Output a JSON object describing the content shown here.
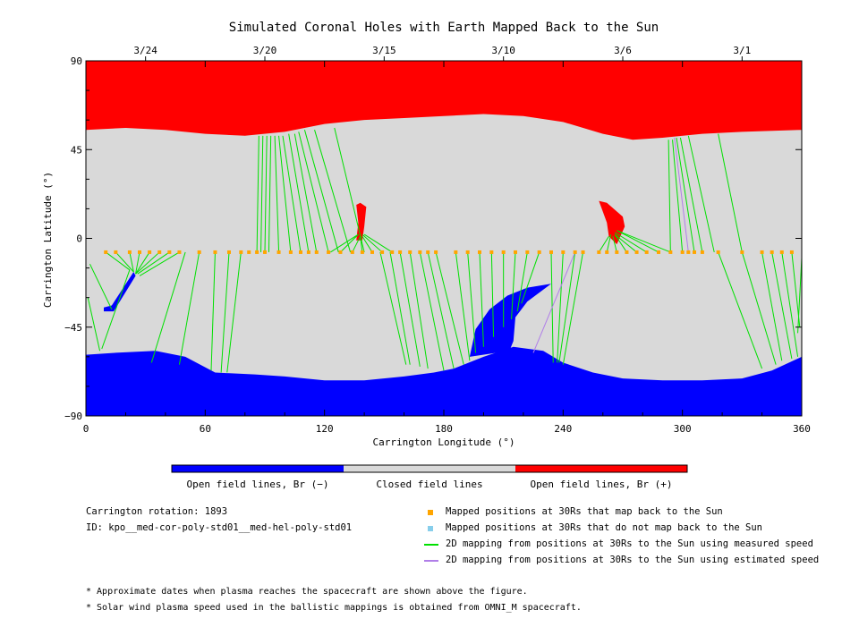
{
  "chart_data": {
    "type": "heatmap",
    "title": "Simulated Coronal Holes with Earth Mapped Back to the Sun",
    "xlabel": "Carrington Longitude (°)",
    "ylabel": "Carrington Latitude (°)",
    "xlim": [
      0,
      360
    ],
    "ylim": [
      -90,
      90
    ],
    "x_ticks": [
      0,
      60,
      120,
      180,
      240,
      300,
      360
    ],
    "y_ticks": [
      -90,
      -45,
      0,
      45,
      90
    ],
    "x_tick_labels": [
      "0",
      "60",
      "120",
      "180",
      "240",
      "300",
      "360"
    ],
    "y_tick_labels": [
      "−90",
      "−45",
      "0",
      "45",
      "90"
    ],
    "top_axis": {
      "labels": [
        {
          "text": "3/24",
          "lon": 30
        },
        {
          "text": "3/20",
          "lon": 90
        },
        {
          "text": "3/15",
          "lon": 150
        },
        {
          "text": "3/10",
          "lon": 210
        },
        {
          "text": "3/6",
          "lon": 270
        },
        {
          "text": "3/1",
          "lon": 330
        }
      ]
    },
    "colors": {
      "negative": "#0000ff",
      "closed": "#d9d9d9",
      "positive": "#ff0000",
      "mapped": "#ffa500",
      "unmapped": "#87ceeb",
      "measured": "#00e000",
      "estimated": "#b07ee8"
    },
    "regions": {
      "north_positive_boundary": [
        [
          0,
          55
        ],
        [
          20,
          56
        ],
        [
          40,
          55
        ],
        [
          60,
          53
        ],
        [
          80,
          52
        ],
        [
          100,
          54
        ],
        [
          120,
          58
        ],
        [
          140,
          60
        ],
        [
          160,
          61
        ],
        [
          180,
          62
        ],
        [
          200,
          63
        ],
        [
          220,
          62
        ],
        [
          240,
          59
        ],
        [
          260,
          53
        ],
        [
          275,
          50
        ],
        [
          290,
          51
        ],
        [
          310,
          53
        ],
        [
          330,
          54
        ],
        [
          360,
          55
        ]
      ],
      "south_negative_boundary": [
        [
          0,
          -59
        ],
        [
          15,
          -58
        ],
        [
          35,
          -57
        ],
        [
          50,
          -60
        ],
        [
          65,
          -68
        ],
        [
          85,
          -69
        ],
        [
          100,
          -70
        ],
        [
          120,
          -72
        ],
        [
          140,
          -72
        ],
        [
          160,
          -70
        ],
        [
          175,
          -68
        ],
        [
          185,
          -66
        ],
        [
          200,
          -60
        ],
        [
          215,
          -55
        ],
        [
          230,
          -57
        ],
        [
          240,
          -63
        ],
        [
          255,
          -68
        ],
        [
          270,
          -71
        ],
        [
          290,
          -72
        ],
        [
          310,
          -72
        ],
        [
          330,
          -71
        ],
        [
          345,
          -67
        ],
        [
          360,
          -60
        ]
      ],
      "southern_tongue": [
        [
          193,
          -60
        ],
        [
          196,
          -46
        ],
        [
          203,
          -36
        ],
        [
          212,
          -29
        ],
        [
          222,
          -25
        ],
        [
          234,
          -23
        ],
        [
          230,
          -26
        ],
        [
          222,
          -32
        ],
        [
          216,
          -40
        ],
        [
          215,
          -52
        ],
        [
          213,
          -57
        ]
      ],
      "negative_patch": [
        [
          9,
          -35
        ],
        [
          13,
          -34
        ],
        [
          24,
          -17
        ],
        [
          25,
          -19
        ],
        [
          14,
          -37
        ],
        [
          9,
          -37
        ]
      ],
      "positive_patch_1": [
        [
          136,
          -1
        ],
        [
          137,
          8
        ],
        [
          136,
          17
        ],
        [
          138,
          18
        ],
        [
          141,
          16
        ],
        [
          140,
          6
        ],
        [
          139,
          -1
        ]
      ],
      "positive_patch_2": [
        [
          258,
          19
        ],
        [
          262,
          18
        ],
        [
          270,
          11
        ],
        [
          271,
          6
        ],
        [
          267,
          -3
        ],
        [
          263,
          1
        ],
        [
          262,
          8
        ]
      ]
    },
    "mapped_positions_lat": -7,
    "mapped_positions_lon": [
      10,
      15,
      22,
      27,
      32,
      37,
      42,
      47,
      57,
      65,
      72,
      78,
      82,
      86,
      90,
      97,
      103,
      108,
      112,
      116,
      122,
      128,
      134,
      139,
      144,
      149,
      154,
      158,
      163,
      168,
      172,
      176,
      186,
      192,
      198,
      204,
      210,
      216,
      222,
      228,
      234,
      240,
      246,
      250,
      258,
      262,
      267,
      272,
      277,
      282,
      288,
      294,
      300,
      303,
      306,
      310,
      318,
      330,
      340,
      345,
      350,
      355
    ],
    "measured_mappings": [
      [
        10,
        -7,
        22,
        -16
      ],
      [
        15,
        -7,
        24,
        -17
      ],
      [
        22,
        -7,
        24,
        -17
      ],
      [
        27,
        -7,
        25,
        -18
      ],
      [
        32,
        -7,
        25,
        -18
      ],
      [
        37,
        -7,
        25,
        -18
      ],
      [
        42,
        -7,
        26,
        -18
      ],
      [
        47,
        -7,
        27,
        -19
      ],
      [
        2,
        -13,
        13,
        -36
      ],
      [
        1,
        -30,
        7,
        -57
      ],
      [
        22,
        -16,
        8,
        -56
      ],
      [
        50,
        -7,
        33,
        -63
      ],
      [
        57,
        -7,
        47,
        -64
      ],
      [
        65,
        -7,
        63,
        -67
      ],
      [
        72,
        -7,
        68,
        -68
      ],
      [
        78,
        -7,
        71,
        -68
      ],
      [
        86,
        -7,
        87,
        52
      ],
      [
        88,
        -7,
        89,
        52
      ],
      [
        90,
        -7,
        91,
        52
      ],
      [
        92,
        -7,
        93,
        52
      ],
      [
        97,
        -7,
        95,
        52
      ],
      [
        103,
        -7,
        97,
        52
      ],
      [
        108,
        -7,
        99,
        52
      ],
      [
        112,
        -7,
        102,
        53
      ],
      [
        116,
        -7,
        105,
        53
      ],
      [
        122,
        -7,
        107,
        54
      ],
      [
        127,
        -7,
        110,
        55
      ],
      [
        133,
        -7,
        115,
        55
      ],
      [
        140,
        -7,
        125,
        56
      ],
      [
        123,
        -7,
        137,
        2
      ],
      [
        128,
        -7,
        137,
        2
      ],
      [
        134,
        -7,
        138,
        1
      ],
      [
        139,
        -7,
        138,
        1
      ],
      [
        144,
        -7,
        139,
        1
      ],
      [
        149,
        -7,
        139,
        2
      ],
      [
        154,
        -7,
        140,
        2
      ],
      [
        148,
        -7,
        161,
        -64
      ],
      [
        153,
        -7,
        163,
        -64
      ],
      [
        158,
        -7,
        168,
        -65
      ],
      [
        163,
        -7,
        172,
        -66
      ],
      [
        168,
        -7,
        180,
        -67
      ],
      [
        172,
        -7,
        185,
        -66
      ],
      [
        176,
        -7,
        190,
        -64
      ],
      [
        186,
        -7,
        193,
        -62
      ],
      [
        192,
        -7,
        196,
        -58
      ],
      [
        198,
        -7,
        200,
        -55
      ],
      [
        204,
        -7,
        205,
        -50
      ],
      [
        210,
        -7,
        210,
        -45
      ],
      [
        216,
        -7,
        214,
        -41
      ],
      [
        222,
        -7,
        217,
        -37
      ],
      [
        228,
        -7,
        219,
        -33
      ],
      [
        234,
        -7,
        235,
        -63
      ],
      [
        240,
        -7,
        237,
        -63
      ],
      [
        246,
        -7,
        238,
        -63
      ],
      [
        250,
        -7,
        240,
        -64
      ],
      [
        258,
        -7,
        263,
        1
      ],
      [
        262,
        -7,
        264,
        2
      ],
      [
        267,
        -7,
        265,
        1
      ],
      [
        272,
        -7,
        266,
        2
      ],
      [
        277,
        -7,
        266,
        2
      ],
      [
        282,
        -7,
        266,
        3
      ],
      [
        288,
        -7,
        267,
        4
      ],
      [
        294,
        -7,
        267,
        4
      ],
      [
        294,
        -7,
        293,
        50
      ],
      [
        300,
        -7,
        295,
        50
      ],
      [
        306,
        -7,
        297,
        51
      ],
      [
        310,
        -7,
        299,
        51
      ],
      [
        316,
        -7,
        303,
        52
      ],
      [
        330,
        -7,
        318,
        53
      ],
      [
        318,
        -7,
        340,
        -66
      ],
      [
        330,
        -7,
        347,
        -64
      ],
      [
        340,
        -7,
        350,
        -62
      ],
      [
        345,
        -7,
        355,
        -61
      ],
      [
        350,
        -7,
        358,
        -60
      ],
      [
        355,
        -7,
        359,
        -45
      ],
      [
        360,
        -10,
        358,
        -48
      ]
    ],
    "estimated_mappings": [
      [
        303,
        -7,
        296,
        51
      ],
      [
        246,
        -7,
        225,
        -58
      ]
    ]
  },
  "colorbar": {
    "labels": [
      "Open field lines, Br (−)",
      "Closed field lines",
      "Open field lines, Br (+)"
    ]
  },
  "info": {
    "rotation": "Carrington rotation: 1893",
    "id": "ID: kpo__med-cor-poly-std01__med-hel-poly-std01"
  },
  "legend": {
    "items": [
      {
        "label": "Mapped positions at 30Rs that map back to the Sun",
        "kind": "square",
        "color": "#ffa500"
      },
      {
        "label": "Mapped positions at 30Rs that do not map back to the Sun",
        "kind": "square",
        "color": "#87ceeb"
      },
      {
        "label": "2D mapping from positions at 30Rs to the Sun using measured speed",
        "kind": "line",
        "color": "#00e000"
      },
      {
        "label": "2D mapping from positions at 30Rs to the Sun using estimated speed",
        "kind": "line",
        "color": "#b07ee8"
      }
    ]
  },
  "notes": [
    "* Approximate dates when plasma reaches the spacecraft are shown above the figure.",
    "* Solar wind plasma speed used in the ballistic mappings is obtained from OMNI_M spacecraft."
  ]
}
